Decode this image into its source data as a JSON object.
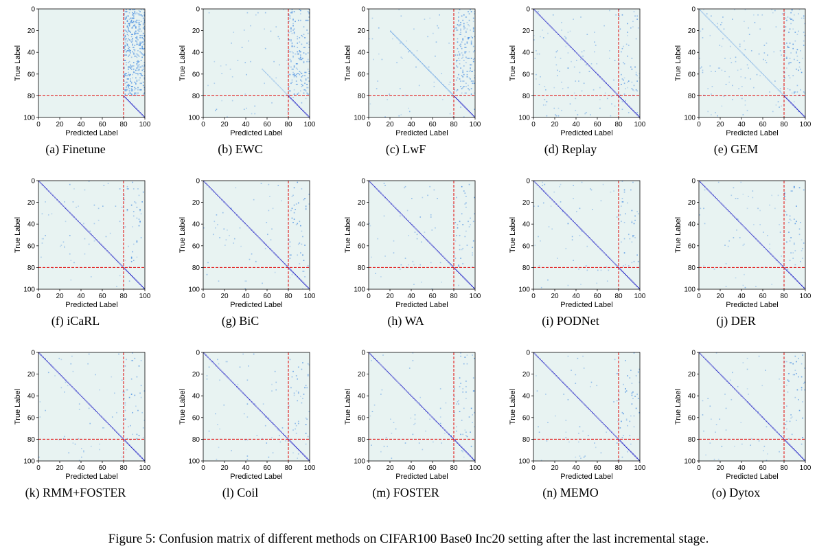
{
  "figure_caption": "Figure 5: Confusion matrix of different methods on CIFAR100 Base0 Inc20 setting after the last incremental stage.",
  "colors": {
    "background": "#e8f3f2",
    "low": "#cfe6ee",
    "mid": "#4a8fe0",
    "high": "#2c2cc8",
    "separator": "#e00000",
    "axis": "#000000"
  },
  "chart_data": [
    {
      "label": "(a) Finetune",
      "type": "heatmap",
      "xlabel": "Predicted Label",
      "ylabel": "True Label",
      "xticks": [
        0,
        20,
        40,
        60,
        80,
        100
      ],
      "yticks": [
        0,
        20,
        40,
        60,
        80,
        100
      ],
      "xlim": [
        0,
        100
      ],
      "ylim": [
        0,
        100
      ],
      "separator": 80,
      "diagonal": "last_task_only",
      "old_to_new_confusion": "very_high",
      "background_noise": "none"
    },
    {
      "label": "(b) EWC",
      "type": "heatmap",
      "xlabel": "Predicted Label",
      "ylabel": "True Label",
      "xticks": [
        0,
        20,
        40,
        60,
        80,
        100
      ],
      "yticks": [
        0,
        20,
        40,
        60,
        80,
        100
      ],
      "xlim": [
        0,
        100
      ],
      "ylim": [
        0,
        100
      ],
      "separator": 80,
      "diagonal": "faint_partial",
      "old_to_new_confusion": "high",
      "background_noise": "light"
    },
    {
      "label": "(c) LwF",
      "type": "heatmap",
      "xlabel": "Predicted Label",
      "ylabel": "True Label",
      "xticks": [
        0,
        20,
        40,
        60,
        80,
        100
      ],
      "yticks": [
        0,
        20,
        40,
        60,
        80,
        100
      ],
      "xlim": [
        0,
        100
      ],
      "ylim": [
        0,
        100
      ],
      "separator": 80,
      "diagonal": "partial_from_20",
      "old_to_new_confusion": "high",
      "background_noise": "light"
    },
    {
      "label": "(d) Replay",
      "type": "heatmap",
      "xlabel": "Predicted Label",
      "ylabel": "True Label",
      "xticks": [
        0,
        20,
        40,
        60,
        80,
        100
      ],
      "yticks": [
        0,
        20,
        40,
        60,
        80,
        100
      ],
      "xlim": [
        0,
        100
      ],
      "ylim": [
        0,
        100
      ],
      "separator": 80,
      "diagonal": "full",
      "old_to_new_confusion": "low",
      "background_noise": "medium"
    },
    {
      "label": "(e) GEM",
      "type": "heatmap",
      "xlabel": "Predicted Label",
      "ylabel": "True Label",
      "xticks": [
        0,
        20,
        40,
        60,
        80,
        100
      ],
      "yticks": [
        0,
        20,
        40,
        60,
        80,
        100
      ],
      "xlim": [
        0,
        100
      ],
      "ylim": [
        0,
        100
      ],
      "separator": 80,
      "diagonal": "faint_full",
      "old_to_new_confusion": "medium",
      "background_noise": "medium"
    },
    {
      "label": "(f) iCaRL",
      "type": "heatmap",
      "xlabel": "Predicted Label",
      "ylabel": "True Label",
      "xticks": [
        0,
        20,
        40,
        60,
        80,
        100
      ],
      "yticks": [
        0,
        20,
        40,
        60,
        80,
        100
      ],
      "xlim": [
        0,
        100
      ],
      "ylim": [
        0,
        100
      ],
      "separator": 80,
      "diagonal": "full",
      "old_to_new_confusion": "low",
      "background_noise": "light"
    },
    {
      "label": "(g) BiC",
      "type": "heatmap",
      "xlabel": "Predicted Label",
      "ylabel": "True Label",
      "xticks": [
        0,
        20,
        40,
        60,
        80,
        100
      ],
      "yticks": [
        0,
        20,
        40,
        60,
        80,
        100
      ],
      "xlim": [
        0,
        100
      ],
      "ylim": [
        0,
        100
      ],
      "separator": 80,
      "diagonal": "full",
      "old_to_new_confusion": "low",
      "background_noise": "light"
    },
    {
      "label": "(h) WA",
      "type": "heatmap",
      "xlabel": "Predicted Label",
      "ylabel": "True Label",
      "xticks": [
        0,
        20,
        40,
        60,
        80,
        100
      ],
      "yticks": [
        0,
        20,
        40,
        60,
        80,
        100
      ],
      "xlim": [
        0,
        100
      ],
      "ylim": [
        0,
        100
      ],
      "separator": 80,
      "diagonal": "full",
      "old_to_new_confusion": "low",
      "background_noise": "light"
    },
    {
      "label": "(i) PODNet",
      "type": "heatmap",
      "xlabel": "Predicted Label",
      "ylabel": "True Label",
      "xticks": [
        0,
        20,
        40,
        60,
        80,
        100
      ],
      "yticks": [
        0,
        20,
        40,
        60,
        80,
        100
      ],
      "xlim": [
        0,
        100
      ],
      "ylim": [
        0,
        100
      ],
      "separator": 80,
      "diagonal": "full",
      "old_to_new_confusion": "low",
      "background_noise": "light"
    },
    {
      "label": "(j) DER",
      "type": "heatmap",
      "xlabel": "Predicted Label",
      "ylabel": "True Label",
      "xticks": [
        0,
        20,
        40,
        60,
        80,
        100
      ],
      "yticks": [
        0,
        20,
        40,
        60,
        80,
        100
      ],
      "xlim": [
        0,
        100
      ],
      "ylim": [
        0,
        100
      ],
      "separator": 80,
      "diagonal": "full",
      "old_to_new_confusion": "low",
      "background_noise": "light"
    },
    {
      "label": "(k) RMM+FOSTER",
      "type": "heatmap",
      "xlabel": "Predicted Label",
      "ylabel": "True Label",
      "xticks": [
        0,
        20,
        40,
        60,
        80,
        100
      ],
      "yticks": [
        0,
        20,
        40,
        60,
        80,
        100
      ],
      "xlim": [
        0,
        100
      ],
      "ylim": [
        0,
        100
      ],
      "separator": 80,
      "diagonal": "full",
      "old_to_new_confusion": "low",
      "background_noise": "light"
    },
    {
      "label": "(l) Coil",
      "type": "heatmap",
      "xlabel": "Predicted Label",
      "ylabel": "True Label",
      "xticks": [
        0,
        20,
        40,
        60,
        80,
        100
      ],
      "yticks": [
        0,
        20,
        40,
        60,
        80,
        100
      ],
      "xlim": [
        0,
        100
      ],
      "ylim": [
        0,
        100
      ],
      "separator": 80,
      "diagonal": "full",
      "old_to_new_confusion": "low",
      "background_noise": "light"
    },
    {
      "label": "(m) FOSTER",
      "type": "heatmap",
      "xlabel": "Predicted Label",
      "ylabel": "True Label",
      "xticks": [
        0,
        20,
        40,
        60,
        80,
        100
      ],
      "yticks": [
        0,
        20,
        40,
        60,
        80,
        100
      ],
      "xlim": [
        0,
        100
      ],
      "ylim": [
        0,
        100
      ],
      "separator": 80,
      "diagonal": "full",
      "old_to_new_confusion": "low",
      "background_noise": "light"
    },
    {
      "label": "(n) MEMO",
      "type": "heatmap",
      "xlabel": "Predicted Label",
      "ylabel": "True Label",
      "xticks": [
        0,
        20,
        40,
        60,
        80,
        100
      ],
      "yticks": [
        0,
        20,
        40,
        60,
        80,
        100
      ],
      "xlim": [
        0,
        100
      ],
      "ylim": [
        0,
        100
      ],
      "separator": 80,
      "diagonal": "full",
      "old_to_new_confusion": "low",
      "background_noise": "light"
    },
    {
      "label": "(o) Dytox",
      "type": "heatmap",
      "xlabel": "Predicted Label",
      "ylabel": "True Label",
      "xticks": [
        0,
        20,
        40,
        60,
        80,
        100
      ],
      "yticks": [
        0,
        20,
        40,
        60,
        80,
        100
      ],
      "xlim": [
        0,
        100
      ],
      "ylim": [
        0,
        100
      ],
      "separator": 80,
      "diagonal": "full",
      "old_to_new_confusion": "low",
      "background_noise": "light"
    }
  ]
}
